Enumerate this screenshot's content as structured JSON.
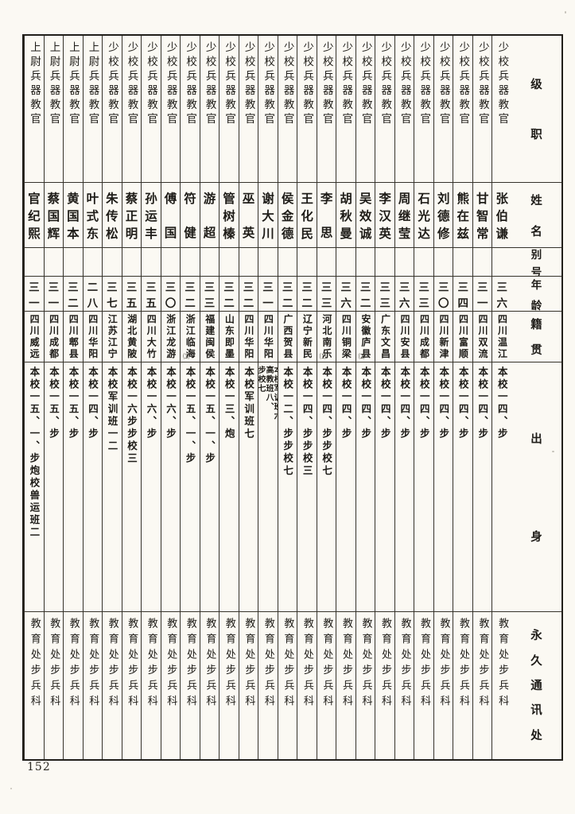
{
  "page": {
    "number": "152"
  },
  "table": {
    "headers": {
      "rank": "级职",
      "name": "姓名",
      "alias": "别号",
      "age": "年龄",
      "native_place": "籍贯",
      "background": "出身",
      "contact": "永久通讯处"
    },
    "people": [
      {
        "rank": "少校兵器教官",
        "name": "张伯谦",
        "alias": "",
        "age": "三六",
        "native_place": "四川温江",
        "place_note": "",
        "background": "本校一四、步",
        "contact": "教育处步兵科"
      },
      {
        "rank": "少校兵器教官",
        "name": "甘智常",
        "alias": "",
        "age": "三一",
        "native_place": "四川双流",
        "place_note": "",
        "background": "本校一四、步",
        "contact": "教育处步兵科"
      },
      {
        "rank": "少校兵器教官",
        "name": "熊在兹",
        "alias": "",
        "age": "三四",
        "native_place": "四川富顺",
        "place_note": "",
        "background": "本校一四、步",
        "contact": "教育处步兵科"
      },
      {
        "rank": "少校兵器教官",
        "name": "刘德修",
        "alias": "",
        "age": "三〇",
        "native_place": "四川新津",
        "place_note": "",
        "background": "本校一四、步",
        "contact": "教育处步兵科"
      },
      {
        "rank": "少校兵器教官",
        "name": "石光达",
        "alias": "",
        "age": "三三",
        "native_place": "四川成都",
        "place_note": "",
        "background": "本校一四、步",
        "contact": "教育处步兵科"
      },
      {
        "rank": "少校兵器教官",
        "name": "周继莹",
        "alias": "",
        "age": "三六",
        "native_place": "四川安县",
        "place_note": "",
        "background": "本校一四、步",
        "contact": "教育处步兵科"
      },
      {
        "rank": "少校兵器教官",
        "name": "李汉英",
        "alias": "",
        "age": "三三",
        "native_place": "广东文昌",
        "place_note": "",
        "background": "本校一四、步",
        "contact": "教育处步兵科"
      },
      {
        "rank": "少校兵器教官",
        "name": "吴效诚",
        "alias": "",
        "age": "三二",
        "native_place": "安徽庐县",
        "place_note": "⑵",
        "background": "本校一四、步",
        "contact": "教育处步兵科"
      },
      {
        "rank": "少校兵器教官",
        "name": "胡秋曼",
        "alias": "",
        "age": "三六",
        "native_place": "四川铜梁",
        "place_note": "",
        "background": "本校一四、步",
        "contact": "教育处步兵科"
      },
      {
        "rank": "少校兵器教官",
        "name": "李思",
        "alias": "",
        "age": "三三",
        "native_place": "河北南乐",
        "place_note": "⑴",
        "background": "本校一四、步步校七",
        "contact": "教育处步兵科"
      },
      {
        "rank": "少校兵器教官",
        "name": "王化民",
        "alias": "",
        "age": "三二",
        "native_place": "辽宁新民",
        "place_note": "",
        "background": "本校一四、步步校三",
        "contact": "教育处步兵科"
      },
      {
        "rank": "少校兵器教官",
        "name": "侯金德",
        "alias": "",
        "age": "三二",
        "native_place": "广西贺县",
        "place_note": "",
        "background": "本校一二、步步校七",
        "contact": "教育处步兵科"
      },
      {
        "rank": "少校兵器教官",
        "name": "谢大川",
        "alias": "",
        "age": "三一",
        "native_place": "四川华阳",
        "place_note": "",
        "background": "本校军训班六、\n高教班八、\n步校七",
        "contact": "教育处步兵科"
      },
      {
        "rank": "少校兵器教官",
        "name": "巫英",
        "alias": "",
        "age": "三二",
        "native_place": "四川华阳",
        "place_note": "",
        "background": "本校军训班七",
        "contact": "教育处步兵科"
      },
      {
        "rank": "少校兵器教官",
        "name": "管树榛",
        "alias": "",
        "age": "三二",
        "native_place": "山东即墨",
        "place_note": "",
        "background": "本校一三、炮",
        "contact": "教育处步兵科"
      },
      {
        "rank": "少校兵器教官",
        "name": "游超",
        "alias": "",
        "age": "三三",
        "native_place": "福建闽侯",
        "place_note": "",
        "background": "本校一五、一、步",
        "contact": "教育处步兵科"
      },
      {
        "rank": "少校兵器教官",
        "name": "符健",
        "alias": "",
        "age": "三二",
        "native_place": "浙江临海",
        "place_note": "⑶",
        "background": "本校一五、一、步",
        "contact": "教育处步兵科"
      },
      {
        "rank": "少校兵器教官",
        "name": "傅国",
        "alias": "",
        "age": "三〇",
        "native_place": "浙江龙游",
        "place_note": "",
        "background": "本校一六、步",
        "contact": "教育处步兵科"
      },
      {
        "rank": "少校兵器教官",
        "name": "孙运丰",
        "alias": "",
        "age": "三五",
        "native_place": "四川大竹",
        "place_note": "",
        "background": "本校一六、步",
        "contact": "教育处步兵科"
      },
      {
        "rank": "少校兵器教官",
        "name": "蔡正明",
        "alias": "",
        "age": "三五",
        "native_place": "湖北黄陂",
        "place_note": "",
        "background": "本校一六步步校三",
        "contact": "教育处步兵科"
      },
      {
        "rank": "少校兵器教官",
        "name": "朱传松",
        "alias": "",
        "age": "三七",
        "native_place": "江苏江宁",
        "place_note": "",
        "background": "本校军训班一二",
        "contact": "教育处步兵科"
      },
      {
        "rank": "上尉兵器教官",
        "name": "叶式东",
        "alias": "",
        "age": "二八",
        "native_place": "四川华阳",
        "place_note": "",
        "background": "本校一四、步",
        "contact": "教育处步兵科"
      },
      {
        "rank": "上尉兵器教官",
        "name": "黄国本",
        "alias": "",
        "age": "三二",
        "native_place": "四川郫县",
        "place_note": "",
        "background": "本校一五、步",
        "contact": "教育处步兵科"
      },
      {
        "rank": "上尉兵器教官",
        "name": "蔡国辉",
        "alias": "",
        "age": "三一",
        "native_place": "四川成都",
        "place_note": "",
        "background": "本校一五、步",
        "contact": "教育处步兵科"
      },
      {
        "rank": "上尉兵器教官",
        "name": "官纪熙",
        "alias": "",
        "age": "三一",
        "native_place": "四川威远",
        "place_note": "",
        "background": "本校一五、一、步炮校兽运班二",
        "contact": "教育处步兵科"
      }
    ]
  }
}
